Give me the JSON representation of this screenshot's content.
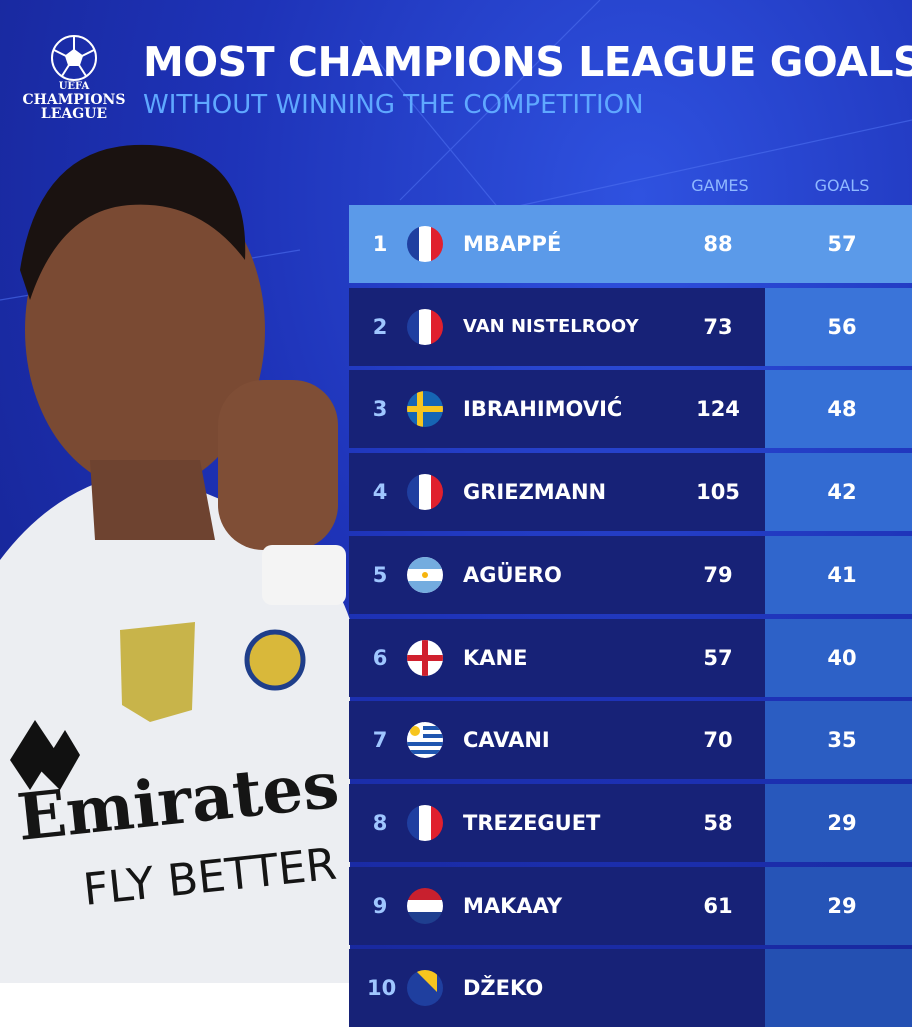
{
  "logo": {
    "line1": "UEFA",
    "line2": "CHAMPIONS",
    "line3": "LEAGUE"
  },
  "header": {
    "title": "MOST CHAMPIONS LEAGUE GOALS",
    "subtitle": "WITHOUT WINNING THE COMPETITION"
  },
  "table": {
    "columns": [
      "GAMES",
      "GOALS"
    ],
    "rows": [
      {
        "rank": 1,
        "name": "MBAPPÉ",
        "games": 88,
        "goals": 57
      },
      {
        "rank": 2,
        "name": "VAN NISTELROOY",
        "games": 73,
        "goals": 56
      },
      {
        "rank": 3,
        "name": "IBRAHIMOVIĆ",
        "games": 124,
        "goals": 48
      },
      {
        "rank": 4,
        "name": "GRIEZMANN",
        "games": 105,
        "goals": 42
      },
      {
        "rank": 5,
        "name": "AGÜERO",
        "games": 79,
        "goals": 41
      },
      {
        "rank": 6,
        "name": "KANE",
        "games": 57,
        "goals": 40
      },
      {
        "rank": 7,
        "name": "CAVANI",
        "games": 70,
        "goals": 35
      },
      {
        "rank": 8,
        "name": "TREZEGUET",
        "games": 58,
        "goals": 29
      },
      {
        "rank": 9,
        "name": "MAKAAY",
        "games": 61,
        "goals": 29
      },
      {
        "rank": 10,
        "name": "DŽEKO"
      }
    ]
  }
}
